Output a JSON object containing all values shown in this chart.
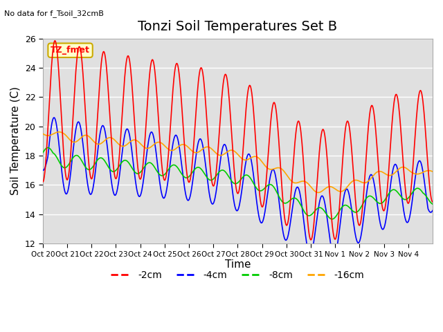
{
  "title": "Tonzi Soil Temperatures Set B",
  "subtitle": "No data for f_Tsoil_32cmB",
  "ylabel": "Soil Temperature (C)",
  "xlabel": "Time",
  "ylim": [
    12,
    26
  ],
  "yticks": [
    12,
    14,
    16,
    18,
    20,
    22,
    24,
    26
  ],
  "xtick_labels": [
    "Oct 20",
    "Oct 21",
    "Oct 22",
    "Oct 23",
    "Oct 24",
    "Oct 25",
    "Oct 26",
    "Oct 27",
    "Oct 28",
    "Oct 29",
    "Oct 30",
    "Oct 31",
    "Nov 1",
    "Nov 2",
    "Nov 3",
    "Nov 4"
  ],
  "legend_label": "TZ_fmet",
  "series_labels": [
    "-2cm",
    "-4cm",
    "-8cm",
    "-16cm"
  ],
  "series_colors": [
    "#ff0000",
    "#0000ff",
    "#00cc00",
    "#ffa500"
  ],
  "background_color": "#e0e0e0",
  "grid_color": "#ffffff",
  "title_fontsize": 14,
  "axis_label_fontsize": 11,
  "n_days": 16,
  "pts_per_day": 48
}
